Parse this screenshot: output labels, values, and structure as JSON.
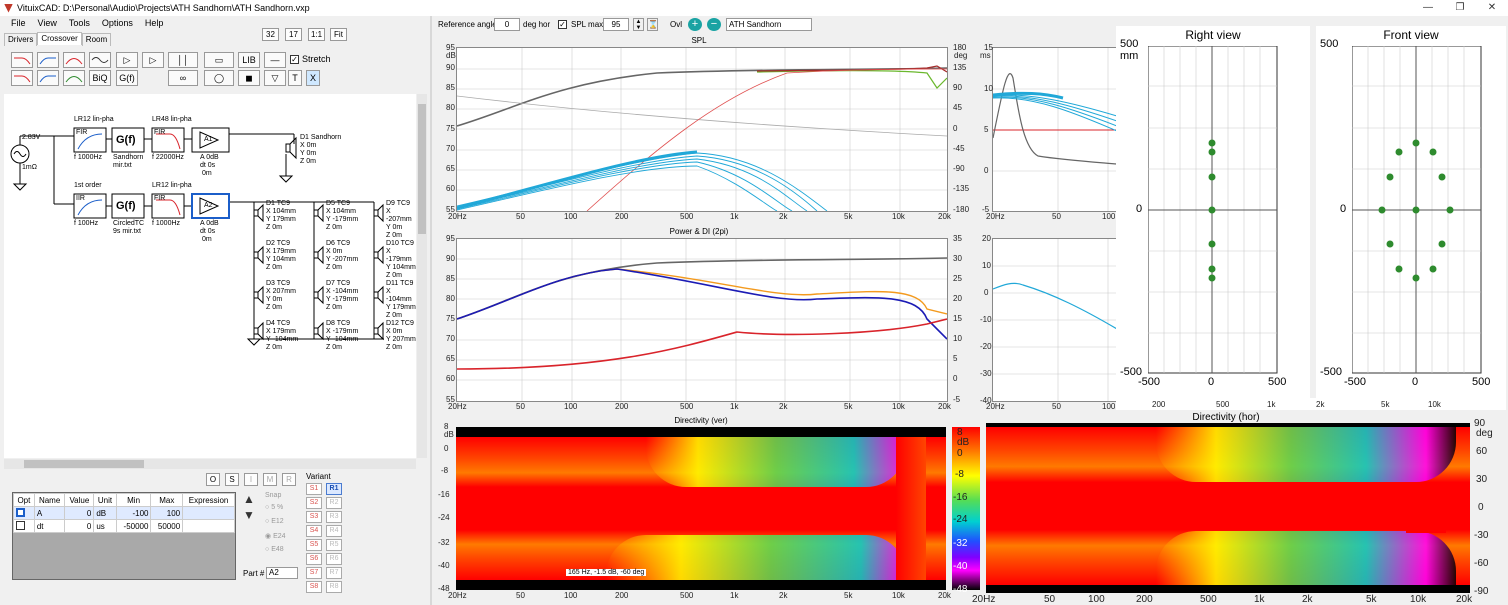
{
  "window": {
    "title": "VituixCAD: D:\\Personal\\Audio\\Projects\\ATH Sandhorn\\ATH Sandhorn.vxp"
  },
  "menu": [
    "File",
    "View",
    "Tools",
    "Options",
    "Help"
  ],
  "tabs": [
    "Drivers",
    "Crossover",
    "Room"
  ],
  "top_buttons": [
    "32",
    "17",
    "1:1",
    "Fit"
  ],
  "toolbar": {
    "lib": "LIB",
    "bq": "BiQ",
    "gf": "G(f)",
    "stretch": "Stretch",
    "t": "T",
    "x": "X"
  },
  "ref_bar": {
    "ref_label": "Reference angle",
    "ref_value": "0",
    "ref_unit": "deg hor",
    "splmax_label": "SPL max",
    "splmax_value": "95",
    "ovl_label": "Ovl",
    "ovl_value": "ATH Sandhorn"
  },
  "schematic": {
    "source_v": "2.83V",
    "source_r": "1mΩ",
    "block1_label": "LR12 lin-pha",
    "block1_type": "FIR",
    "block1_param": "f  1000Hz",
    "gf1_label": "G(f)",
    "gf1_sub1": "Sandhorn",
    "gf1_sub2": "mir.txt",
    "block2_label": "LR48 lin-pha",
    "block2_type": "FIR",
    "block2_param": "f  22000Hz",
    "amp1": "A1",
    "amp1_p1": "A  0dB",
    "amp1_p2": "dt 0s",
    "amp1_p3": "0m",
    "d1_name": "D1 Sandhorn",
    "d1_x": "X 0m",
    "d1_y": "Y 0m",
    "d1_z": "Z 0m",
    "block3_label": "1st order",
    "block3_type": "IIR",
    "block3_param": "f  100Hz",
    "gf2_label": "G(f)",
    "gf2_sub1": "CircledTC",
    "gf2_sub2": "9s mir.txt",
    "block4_label": "LR12 lin-pha",
    "block4_type": "FIR",
    "block4_param": "f  1000Hz",
    "amp2": "A2",
    "amp2_p1": "A  0dB",
    "amp2_p2": "dt 0s",
    "amp2_p3": "0m",
    "drivers": [
      {
        "n": "D1 TC9",
        "x": "X 104mm",
        "y": "Y 179mm",
        "z": "Z 0m"
      },
      {
        "n": "D2 TC9",
        "x": "X 179mm",
        "y": "Y 104mm",
        "z": "Z 0m"
      },
      {
        "n": "D3 TC9",
        "x": "X 207mm",
        "y": "Y 0m",
        "z": "Z 0m"
      },
      {
        "n": "D4 TC9",
        "x": "X 179mm",
        "y": "Y -104mm",
        "z": "Z 0m"
      },
      {
        "n": "D5 TC9",
        "x": "X 104mm",
        "y": "Y -179mm",
        "z": "Z 0m"
      },
      {
        "n": "D6 TC9",
        "x": "X 0m",
        "y": "Y -207mm",
        "z": "Z 0m"
      },
      {
        "n": "D7 TC9",
        "x": "X -104mm",
        "y": "Y -179mm",
        "z": "Z 0m"
      },
      {
        "n": "D8 TC9",
        "x": "X -179mm",
        "y": "Y -104mm",
        "z": "Z 0m"
      },
      {
        "n": "D9 TC9",
        "x": "X -207mm",
        "y": "Y 0m",
        "z": "Z 0m"
      },
      {
        "n": "D10 TC9",
        "x": "X -179mm",
        "y": "Y 104mm",
        "z": "Z 0m"
      },
      {
        "n": "D11 TC9",
        "x": "X -104mm",
        "y": "Y 179mm",
        "z": "Z 0m"
      },
      {
        "n": "D12 TC9",
        "x": "X 0m",
        "y": "Y 207mm",
        "z": "Z 0m"
      }
    ]
  },
  "bottom_buttons": [
    "O",
    "S",
    "I",
    "M",
    "R"
  ],
  "param_table": {
    "headers": [
      "Opt",
      "Name",
      "Value",
      "Unit",
      "Min",
      "Max",
      "Expression"
    ],
    "rows": [
      {
        "name": "A",
        "value": "0",
        "unit": "dB",
        "min": "-100",
        "max": "100"
      },
      {
        "name": "dt",
        "value": "0",
        "unit": "us",
        "min": "-50000",
        "max": "50000"
      }
    ]
  },
  "snap": {
    "label": "Snap",
    "opts": [
      "5 %",
      "E12",
      "E24",
      "E48"
    ]
  },
  "part": {
    "label": "Part #",
    "value": "A2"
  },
  "variant": {
    "label": "Variant",
    "s": [
      "S1",
      "S2",
      "S3",
      "S4",
      "S5",
      "S6",
      "S7",
      "S8"
    ],
    "r": [
      "R1",
      "R2",
      "R3",
      "R4",
      "R5",
      "R6",
      "R7",
      "R8"
    ]
  },
  "freq_ticks": [
    "20Hz",
    "50",
    "100",
    "200",
    "500",
    "1k",
    "2k",
    "5k",
    "10k",
    "20k"
  ],
  "spl": {
    "title": "SPL",
    "db_unit": "dB",
    "deg_unit": "deg",
    "ymax": "95",
    "yticks": [
      "90",
      "85",
      "80",
      "75",
      "70",
      "65",
      "60",
      "55"
    ],
    "rticks": [
      "180",
      "135",
      "90",
      "45",
      "0",
      "-45",
      "-90",
      "-135",
      "-180"
    ]
  },
  "ms_plot": {
    "unit": "ms",
    "yticks": [
      "15",
      "10",
      "5",
      "0",
      "-5"
    ],
    "xticks": [
      "20Hz",
      "50",
      "100"
    ]
  },
  "power": {
    "title": "Power & DI (2pi)",
    "yticks": [
      "95",
      "90",
      "85",
      "80",
      "75",
      "70",
      "65",
      "60",
      "55"
    ],
    "rticks": [
      "35",
      "30",
      "25",
      "20",
      "15",
      "10",
      "5",
      "0",
      "-5"
    ]
  },
  "di_plot": {
    "yticks": [
      "20",
      "10",
      "0",
      "-10",
      "-20",
      "-30",
      "-40"
    ],
    "xticks": [
      "20Hz",
      "50",
      "100"
    ]
  },
  "dir_ver": {
    "title": "Directivity (ver)",
    "cursor": "165 Hz, -1.5 dB, -60 deg",
    "scale": [
      "8",
      "0",
      "-8",
      "-16",
      "-24",
      "-32",
      "-40",
      "-48"
    ],
    "scale_unit": "dB"
  },
  "dir_hor": {
    "title": "Directivity (hor)",
    "yticks": [
      "90",
      "60",
      "30",
      "0",
      "-30",
      "-60",
      "-90"
    ],
    "unit": "deg",
    "xticks": [
      "20Hz",
      "50",
      "100",
      "200",
      "500",
      "1k",
      "2k",
      "5k",
      "10k",
      "20k"
    ]
  },
  "right_view": {
    "title": "Right view",
    "unit": "mm",
    "yticks": [
      "500",
      "0",
      "-500"
    ],
    "xticks": [
      "-500",
      "0",
      "500"
    ]
  },
  "front_view": {
    "title": "Front view",
    "yticks": [
      "500",
      "0",
      "-500"
    ],
    "xticks": [
      "-500",
      "0",
      "500"
    ]
  },
  "overlay_xticks": [
    "200",
    "500",
    "1k",
    "2k",
    "5k",
    "10k"
  ],
  "colors": {
    "red": "#d9242b",
    "blue": "#1b5ec9",
    "cyan": "#21a8d8",
    "gray": "#666666",
    "green": "#2e8b2e",
    "orange": "#f39a1e"
  }
}
